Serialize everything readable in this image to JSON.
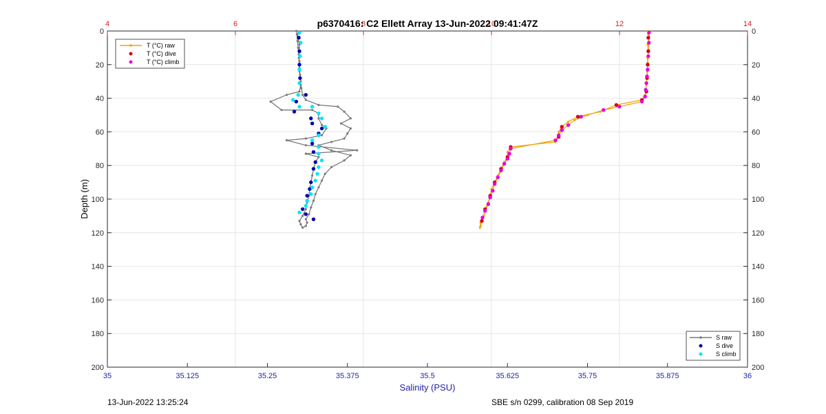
{
  "chart_data": {
    "type": "scatter",
    "title": "p6370416: C2 Ellett Array 13-Jun-2022 09:41:47Z",
    "xlabel": "Salinity (PSU)",
    "ylabel": "Depth (m)",
    "salinity_axis": {
      "range": [
        35,
        36
      ],
      "ticks": [
        35,
        35.125,
        35.25,
        35.375,
        35.5,
        35.625,
        35.75,
        35.875,
        36
      ],
      "tick_labels": [
        "35",
        "35.125",
        "35.25",
        "35.375",
        "35.5",
        "35.625",
        "35.75",
        "35.875",
        "36"
      ],
      "color": "#1f1fa8"
    },
    "temperature_axis": {
      "range": [
        4,
        14
      ],
      "ticks": [
        4,
        6,
        8,
        10,
        12,
        14
      ],
      "tick_labels": [
        "4",
        "6",
        "8",
        "10",
        "12",
        "14"
      ],
      "color": "#d62020"
    },
    "depth_axis": {
      "range": [
        0,
        200
      ],
      "reversed": true,
      "ticks": [
        0,
        20,
        40,
        60,
        80,
        100,
        120,
        140,
        160,
        180,
        200
      ],
      "tick_labels": [
        "0",
        "20",
        "40",
        "60",
        "80",
        "100",
        "120",
        "140",
        "160",
        "180",
        "200"
      ]
    },
    "grid": true,
    "series": [
      {
        "name": "T (°C) raw",
        "axis": "temperature",
        "style": "line-marker",
        "color": "#f0a30a",
        "points": [
          [
            12.45,
            0
          ],
          [
            12.45,
            2
          ],
          [
            12.46,
            4
          ],
          [
            12.44,
            8
          ],
          [
            12.45,
            12
          ],
          [
            12.44,
            16
          ],
          [
            12.44,
            20
          ],
          [
            12.43,
            24
          ],
          [
            12.43,
            28
          ],
          [
            12.42,
            32
          ],
          [
            12.41,
            36
          ],
          [
            12.4,
            38
          ],
          [
            12.35,
            41
          ],
          [
            11.95,
            44
          ],
          [
            11.7,
            48
          ],
          [
            11.35,
            51
          ],
          [
            11.2,
            54
          ],
          [
            11.1,
            57
          ],
          [
            11.05,
            60
          ],
          [
            11.05,
            63
          ],
          [
            11.0,
            66
          ],
          [
            10.3,
            69
          ],
          [
            10.25,
            72
          ],
          [
            10.25,
            75
          ],
          [
            10.2,
            78
          ],
          [
            10.15,
            82
          ],
          [
            10.1,
            86
          ],
          [
            10.05,
            90
          ],
          [
            10.0,
            94
          ],
          [
            9.98,
            98
          ],
          [
            9.95,
            102
          ],
          [
            9.9,
            106
          ],
          [
            9.88,
            110
          ],
          [
            9.85,
            113
          ],
          [
            9.83,
            116
          ],
          [
            9.82,
            117
          ],
          [
            9.83,
            114
          ],
          [
            9.86,
            111
          ],
          [
            9.9,
            107
          ],
          [
            9.95,
            103
          ],
          [
            9.98,
            99
          ],
          [
            10.02,
            95
          ],
          [
            10.05,
            91
          ],
          [
            10.1,
            87
          ],
          [
            10.15,
            83
          ],
          [
            10.2,
            79
          ],
          [
            10.25,
            76
          ],
          [
            10.28,
            73
          ],
          [
            10.3,
            70
          ],
          [
            11.0,
            65
          ],
          [
            11.05,
            62
          ],
          [
            11.1,
            59
          ],
          [
            11.2,
            56
          ],
          [
            11.3,
            53
          ],
          [
            11.5,
            50
          ],
          [
            11.75,
            47
          ],
          [
            12.0,
            45
          ],
          [
            12.35,
            42
          ],
          [
            12.4,
            39
          ],
          [
            12.41,
            35
          ],
          [
            12.42,
            31
          ],
          [
            12.43,
            27
          ],
          [
            12.44,
            23
          ],
          [
            12.44,
            19
          ],
          [
            12.45,
            15
          ],
          [
            12.45,
            11
          ],
          [
            12.46,
            7
          ],
          [
            12.46,
            3
          ],
          [
            12.46,
            1
          ]
        ]
      },
      {
        "name": "T (°C) dive",
        "axis": "temperature",
        "style": "marker",
        "color": "#d4001c",
        "points": [
          [
            12.45,
            4
          ],
          [
            12.45,
            12
          ],
          [
            12.44,
            20
          ],
          [
            12.43,
            28
          ],
          [
            12.42,
            36
          ],
          [
            12.35,
            41
          ],
          [
            11.95,
            44
          ],
          [
            11.35,
            51
          ],
          [
            11.1,
            57
          ],
          [
            11.05,
            63
          ],
          [
            10.3,
            69
          ],
          [
            10.25,
            75
          ],
          [
            10.15,
            82
          ],
          [
            10.05,
            90
          ],
          [
            9.98,
            98
          ],
          [
            9.9,
            106
          ],
          [
            9.85,
            113
          ]
        ]
      },
      {
        "name": "T (°C) climb",
        "axis": "temperature",
        "style": "marker",
        "color": "#e800e0",
        "points": [
          [
            12.46,
            1
          ],
          [
            12.46,
            7
          ],
          [
            12.45,
            15
          ],
          [
            12.44,
            23
          ],
          [
            12.43,
            27
          ],
          [
            12.42,
            31
          ],
          [
            12.41,
            35
          ],
          [
            12.4,
            39
          ],
          [
            12.35,
            42
          ],
          [
            12.0,
            45
          ],
          [
            11.75,
            47
          ],
          [
            11.4,
            51
          ],
          [
            11.2,
            56
          ],
          [
            11.1,
            59
          ],
          [
            11.05,
            62
          ],
          [
            11.0,
            65
          ],
          [
            10.3,
            70
          ],
          [
            10.28,
            73
          ],
          [
            10.25,
            76
          ],
          [
            10.2,
            79
          ],
          [
            10.15,
            83
          ],
          [
            10.1,
            87
          ],
          [
            10.05,
            91
          ],
          [
            10.02,
            95
          ],
          [
            9.98,
            99
          ],
          [
            9.95,
            103
          ],
          [
            9.9,
            107
          ],
          [
            9.86,
            111
          ]
        ]
      },
      {
        "name": "S raw",
        "axis": "salinity",
        "style": "line-marker",
        "color": "#7a7a7a",
        "points": [
          [
            35.295,
            0
          ],
          [
            35.297,
            2
          ],
          [
            35.298,
            4
          ],
          [
            35.3,
            8
          ],
          [
            35.3,
            12
          ],
          [
            35.299,
            16
          ],
          [
            35.3,
            20
          ],
          [
            35.3,
            24
          ],
          [
            35.301,
            28
          ],
          [
            35.302,
            32
          ],
          [
            35.3,
            36
          ],
          [
            35.28,
            38
          ],
          [
            35.255,
            42
          ],
          [
            35.272,
            47
          ],
          [
            35.32,
            47
          ],
          [
            35.33,
            49
          ],
          [
            35.33,
            52
          ],
          [
            35.335,
            56
          ],
          [
            35.342,
            58
          ],
          [
            35.335,
            62
          ],
          [
            35.31,
            64
          ],
          [
            35.28,
            65
          ],
          [
            35.31,
            68
          ],
          [
            35.39,
            71
          ],
          [
            35.31,
            73
          ],
          [
            35.33,
            75
          ],
          [
            35.325,
            78
          ],
          [
            35.322,
            82
          ],
          [
            35.32,
            86
          ],
          [
            35.318,
            90
          ],
          [
            35.316,
            94
          ],
          [
            35.315,
            98
          ],
          [
            35.312,
            102
          ],
          [
            35.31,
            106
          ],
          [
            35.305,
            110
          ],
          [
            35.3,
            113
          ],
          [
            35.302,
            115
          ],
          [
            35.305,
            117
          ],
          [
            35.31,
            116
          ],
          [
            35.312,
            114
          ],
          [
            35.31,
            112
          ],
          [
            35.315,
            109
          ],
          [
            35.318,
            105
          ],
          [
            35.322,
            101
          ],
          [
            35.325,
            97
          ],
          [
            35.33,
            93
          ],
          [
            35.335,
            89
          ],
          [
            35.34,
            85
          ],
          [
            35.35,
            81
          ],
          [
            35.37,
            77
          ],
          [
            35.38,
            74
          ],
          [
            35.35,
            71
          ],
          [
            35.33,
            68
          ],
          [
            35.35,
            66
          ],
          [
            35.37,
            64
          ],
          [
            35.375,
            61
          ],
          [
            35.38,
            58
          ],
          [
            35.365,
            55
          ],
          [
            35.38,
            52
          ],
          [
            35.37,
            48
          ],
          [
            35.36,
            45
          ],
          [
            35.33,
            44
          ],
          [
            35.31,
            41
          ],
          [
            35.305,
            38
          ],
          [
            35.303,
            34
          ],
          [
            35.302,
            30
          ],
          [
            35.301,
            26
          ],
          [
            35.3,
            22
          ],
          [
            35.3,
            18
          ],
          [
            35.299,
            14
          ],
          [
            35.298,
            10
          ],
          [
            35.297,
            6
          ],
          [
            35.296,
            2
          ]
        ]
      },
      {
        "name": "S dive",
        "axis": "salinity",
        "style": "marker",
        "color": "#0000b0",
        "points": [
          [
            35.299,
            4
          ],
          [
            35.3,
            12
          ],
          [
            35.3,
            20
          ],
          [
            35.301,
            28
          ],
          [
            35.31,
            38
          ],
          [
            35.295,
            42
          ],
          [
            35.292,
            48
          ],
          [
            35.318,
            52
          ],
          [
            35.32,
            55
          ],
          [
            35.335,
            58
          ],
          [
            35.33,
            61
          ],
          [
            35.32,
            67
          ],
          [
            35.322,
            72
          ],
          [
            35.325,
            78
          ],
          [
            35.322,
            82
          ],
          [
            35.318,
            90
          ],
          [
            35.316,
            94
          ],
          [
            35.312,
            98
          ],
          [
            35.305,
            106
          ],
          [
            35.31,
            109
          ],
          [
            35.322,
            112
          ]
        ]
      },
      {
        "name": "S climb",
        "axis": "salinity",
        "style": "marker",
        "color": "#00e5ff",
        "points": [
          [
            35.3,
            1
          ],
          [
            35.302,
            7
          ],
          [
            35.301,
            15
          ],
          [
            35.3,
            23
          ],
          [
            35.3,
            31
          ],
          [
            35.298,
            38
          ],
          [
            35.29,
            41
          ],
          [
            35.3,
            45
          ],
          [
            35.32,
            45
          ],
          [
            35.33,
            49
          ],
          [
            35.335,
            52
          ],
          [
            35.34,
            57
          ],
          [
            35.33,
            62
          ],
          [
            35.32,
            65
          ],
          [
            35.33,
            69
          ],
          [
            35.33,
            73
          ],
          [
            35.335,
            77
          ],
          [
            35.33,
            81
          ],
          [
            35.328,
            85
          ],
          [
            35.325,
            89
          ],
          [
            35.32,
            93
          ],
          [
            35.318,
            97
          ],
          [
            35.312,
            101
          ],
          [
            35.31,
            104
          ],
          [
            35.3,
            108
          ]
        ]
      }
    ],
    "legend_top_left": [
      "T (°C) raw",
      "T (°C) dive",
      "T (°C) climb"
    ],
    "legend_bottom_right": [
      "S raw",
      "S dive",
      "S climb"
    ]
  },
  "footer": {
    "left": "13-Jun-2022 13:25:24",
    "right": "SBE s/n 0299, calibration 08 Sep 2019"
  }
}
